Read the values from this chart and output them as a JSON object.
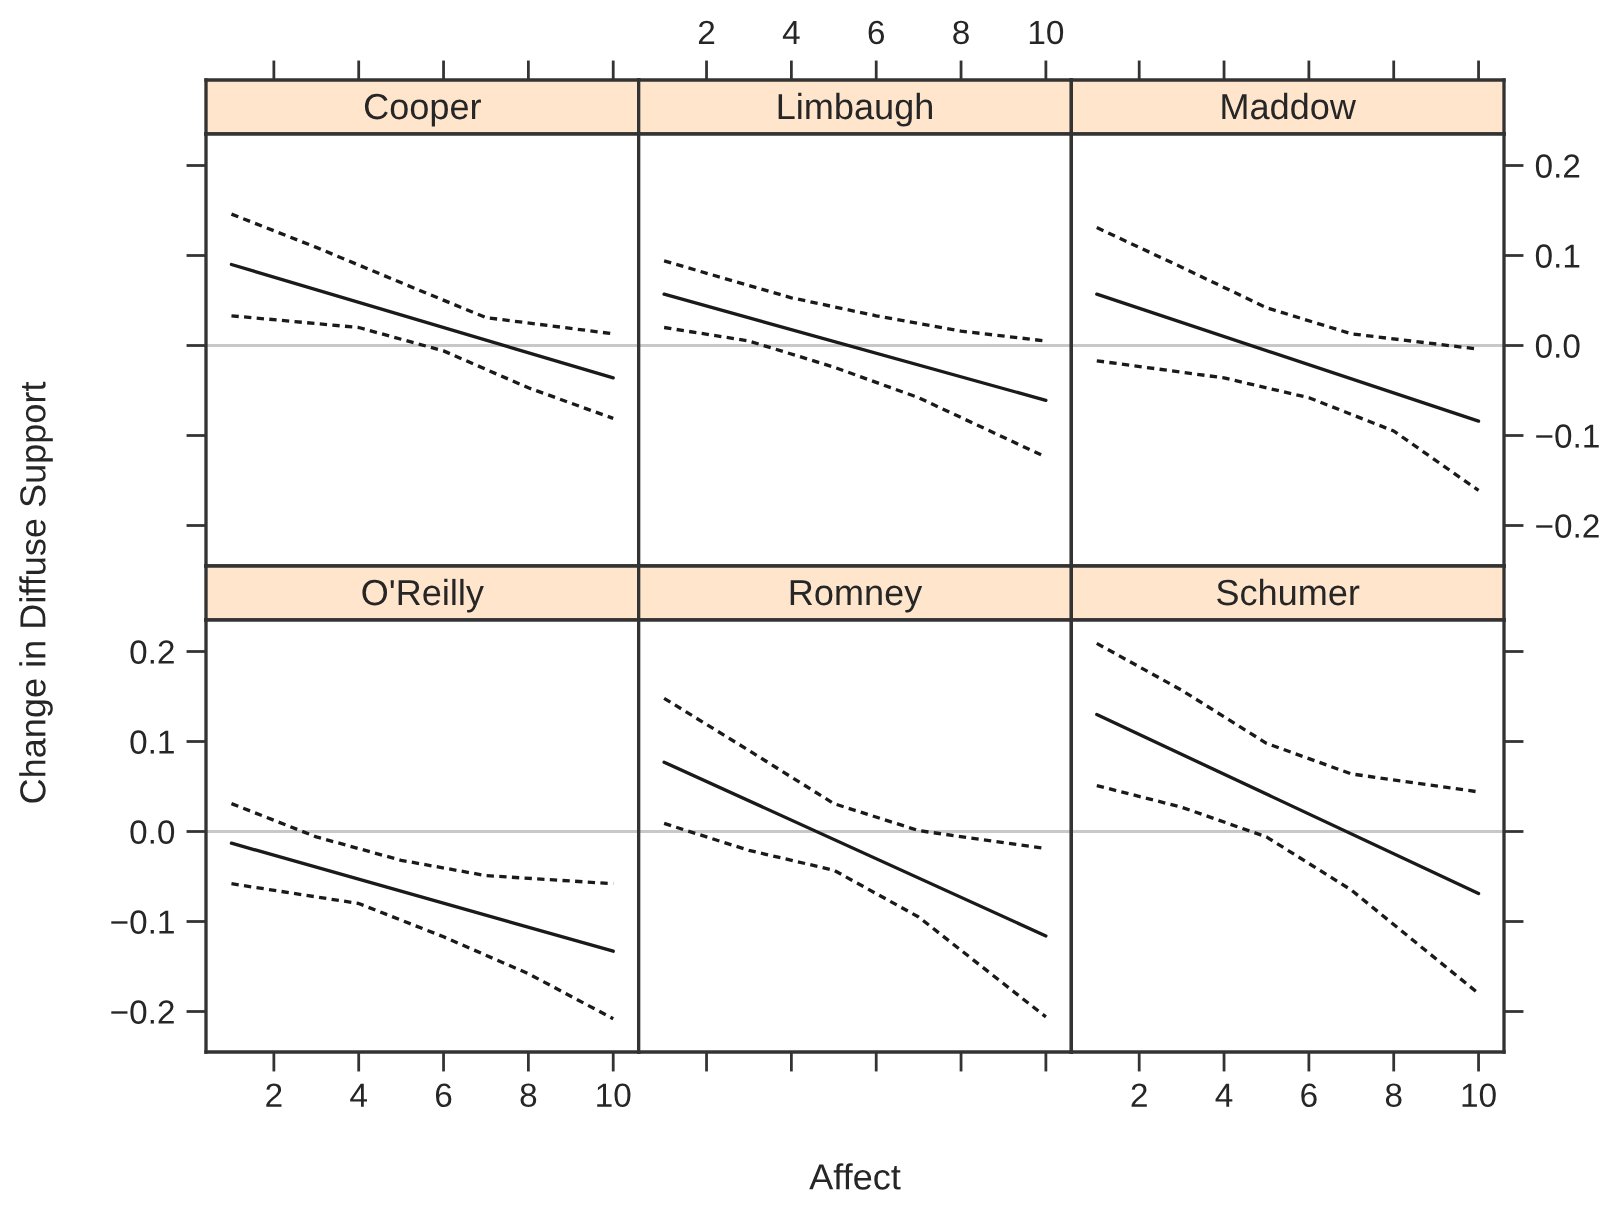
{
  "chart_data": [
    {
      "type": "line",
      "title": "Cooper",
      "xlim": [
        0.4,
        10.6
      ],
      "ylim": [
        -0.245,
        0.235
      ],
      "xticks": [
        {
          "value": 2,
          "label": null
        },
        {
          "value": 4,
          "label": null
        },
        {
          "value": 6,
          "label": null
        },
        {
          "value": 8,
          "label": null
        },
        {
          "value": 10,
          "label": null
        }
      ],
      "yticks": [
        {
          "value": -0.2,
          "label": null
        },
        {
          "value": -0.1,
          "label": null
        },
        {
          "value": 0,
          "label": null
        },
        {
          "value": 0.1,
          "label": null
        },
        {
          "value": 0.2,
          "label": null
        }
      ],
      "tick_labels": false,
      "ref_lines": [
        {
          "axis": "y",
          "value": 0,
          "color": "#c8c8c8"
        }
      ],
      "series": [
        {
          "x": [
            1,
            10
          ],
          "values": [
            0.09,
            -0.036
          ],
          "color": "#1a1a1a",
          "line_style": "solid"
        },
        {
          "x": [
            1,
            3,
            5.5,
            7,
            10
          ],
          "values": [
            0.146,
            0.109,
            0.06,
            0.031,
            0.013
          ],
          "color": "#1a1a1a",
          "line_style": "dashed"
        },
        {
          "x": [
            1,
            4,
            6,
            8,
            10
          ],
          "values": [
            0.033,
            0.02,
            -0.006,
            -0.047,
            -0.081
          ],
          "color": "#1a1a1a",
          "line_style": "dashed"
        }
      ]
    },
    {
      "type": "line",
      "title": "Limbaugh",
      "xlim": [
        0.4,
        10.6
      ],
      "ylim": [
        -0.245,
        0.235
      ],
      "xticks": [
        2,
        4,
        6,
        8,
        10
      ],
      "tick_labels": "x",
      "ref_lines": [
        {
          "axis": "y",
          "value": 0,
          "color": "#c8c8c8"
        }
      ],
      "series": [
        {
          "x": [
            1,
            10
          ],
          "values": [
            0.057,
            -0.061
          ],
          "color": "#1a1a1a",
          "line_style": "solid"
        },
        {
          "x": [
            1,
            4,
            6,
            8,
            10
          ],
          "values": [
            0.094,
            0.053,
            0.033,
            0.016,
            0.005
          ],
          "color": "#1a1a1a",
          "line_style": "dashed"
        },
        {
          "x": [
            1,
            3,
            5,
            7,
            10
          ],
          "values": [
            0.02,
            0.005,
            -0.024,
            -0.058,
            -0.124
          ],
          "color": "#1a1a1a",
          "line_style": "dashed"
        }
      ]
    },
    {
      "type": "line",
      "title": "Maddow",
      "xlim": [
        0.4,
        10.6
      ],
      "ylim": [
        -0.245,
        0.235
      ],
      "xticks": [
        {
          "value": 2,
          "label": null
        },
        {
          "value": 4,
          "label": null
        },
        {
          "value": 6,
          "label": null
        },
        {
          "value": 8,
          "label": null
        },
        {
          "value": 10,
          "label": null
        }
      ],
      "yticks": [
        {
          "value": -0.2,
          "label": "−0.2"
        },
        {
          "value": -0.1,
          "label": "−0.1"
        },
        {
          "value": 0,
          "label": "0.0"
        },
        {
          "value": 0.1,
          "label": "0.1"
        },
        {
          "value": 0.2,
          "label": "0.2"
        }
      ],
      "tick_labels": "y",
      "ref_lines": [
        {
          "axis": "y",
          "value": 0,
          "color": "#c8c8c8"
        }
      ],
      "series": [
        {
          "x": [
            1,
            10
          ],
          "values": [
            0.057,
            -0.084
          ],
          "color": "#1a1a1a",
          "line_style": "solid"
        },
        {
          "x": [
            1,
            3,
            5,
            7,
            10
          ],
          "values": [
            0.131,
            0.087,
            0.042,
            0.013,
            -0.004
          ],
          "color": "#1a1a1a",
          "line_style": "dashed"
        },
        {
          "x": [
            1,
            4,
            6,
            8,
            10
          ],
          "values": [
            -0.017,
            -0.036,
            -0.058,
            -0.095,
            -0.161
          ],
          "color": "#1a1a1a",
          "line_style": "dashed"
        }
      ]
    },
    {
      "type": "line",
      "title": "O'Reilly",
      "xlabel": "Affect",
      "ylabel": "Change in Diffuse Support",
      "xlim": [
        0.4,
        10.6
      ],
      "ylim": [
        -0.245,
        0.235
      ],
      "xticks": [
        2,
        4,
        6,
        8,
        10
      ],
      "yticks": [
        {
          "value": -0.2,
          "label": "−0.2"
        },
        {
          "value": -0.1,
          "label": "−0.1"
        },
        {
          "value": 0,
          "label": "0.0"
        },
        {
          "value": 0.1,
          "label": "0.1"
        },
        {
          "value": 0.2,
          "label": "0.2"
        }
      ],
      "ref_lines": [
        {
          "axis": "y",
          "value": 0,
          "color": "#c8c8c8"
        }
      ],
      "series": [
        {
          "x": [
            1,
            10
          ],
          "values": [
            -0.013,
            -0.133
          ],
          "color": "#1a1a1a",
          "line_style": "solid"
        },
        {
          "x": [
            1,
            3,
            5,
            7,
            10
          ],
          "values": [
            0.031,
            -0.006,
            -0.032,
            -0.049,
            -0.058
          ],
          "color": "#1a1a1a",
          "line_style": "dashed"
        },
        {
          "x": [
            1,
            4,
            6,
            8,
            10
          ],
          "values": [
            -0.058,
            -0.08,
            -0.117,
            -0.158,
            -0.208
          ],
          "color": "#1a1a1a",
          "line_style": "dashed"
        }
      ]
    },
    {
      "type": "line",
      "title": "Romney",
      "xlim": [
        0.4,
        10.6
      ],
      "ylim": [
        -0.245,
        0.235
      ],
      "xticks": [
        {
          "value": 2,
          "label": null
        },
        {
          "value": 4,
          "label": null
        },
        {
          "value": 6,
          "label": null
        },
        {
          "value": 8,
          "label": null
        },
        {
          "value": 10,
          "label": null
        }
      ],
      "tick_labels": false,
      "ref_lines": [
        {
          "axis": "y",
          "value": 0,
          "color": "#c8c8c8"
        }
      ],
      "series": [
        {
          "x": [
            1,
            10
          ],
          "values": [
            0.077,
            -0.116
          ],
          "color": "#1a1a1a",
          "line_style": "solid"
        },
        {
          "x": [
            1,
            3,
            5,
            7,
            10
          ],
          "values": [
            0.148,
            0.09,
            0.031,
            0.001,
            -0.019
          ],
          "color": "#1a1a1a",
          "line_style": "dashed"
        },
        {
          "x": [
            1,
            3,
            5,
            7,
            10
          ],
          "values": [
            0.009,
            -0.021,
            -0.043,
            -0.095,
            -0.206
          ],
          "color": "#1a1a1a",
          "line_style": "dashed"
        }
      ]
    },
    {
      "type": "line",
      "title": "Schumer",
      "xlim": [
        0.4,
        10.6
      ],
      "ylim": [
        -0.245,
        0.235
      ],
      "xticks": [
        2,
        4,
        6,
        8,
        10
      ],
      "yticks": [
        {
          "value": -0.2,
          "label": null
        },
        {
          "value": -0.1,
          "label": null
        },
        {
          "value": 0,
          "label": null
        },
        {
          "value": 0.1,
          "label": null
        },
        {
          "value": 0.2,
          "label": null
        }
      ],
      "tick_labels": "x",
      "ref_lines": [
        {
          "axis": "y",
          "value": 0,
          "color": "#c8c8c8"
        }
      ],
      "series": [
        {
          "x": [
            1,
            10
          ],
          "values": [
            0.13,
            -0.069
          ],
          "color": "#1a1a1a",
          "line_style": "solid"
        },
        {
          "x": [
            1,
            3,
            5,
            7,
            10
          ],
          "values": [
            0.209,
            0.157,
            0.098,
            0.064,
            0.044
          ],
          "color": "#1a1a1a",
          "line_style": "dashed"
        },
        {
          "x": [
            1,
            3,
            5,
            7,
            10
          ],
          "values": [
            0.051,
            0.027,
            -0.006,
            -0.065,
            -0.18
          ],
          "color": "#1a1a1a",
          "line_style": "dashed"
        }
      ]
    }
  ]
}
